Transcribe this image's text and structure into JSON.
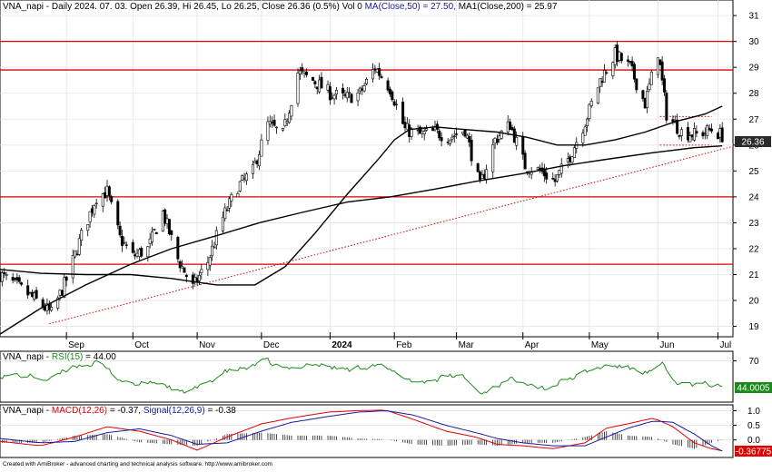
{
  "header": {
    "price_title": "VNA_napi - Daily 2024. 07. 03. Open 26.39, Hi 26.45, Lo 26.25, Close 26.36 (0.5%) Vol 0",
    "ma50_label": "MA(Close,50) = 27.50,",
    "ma200_label": "MA1(Close,200) = 25.97",
    "rsi_prefix": "VNA_napi - ",
    "rsi_label": "RSI(15)",
    "rsi_value": "= 44.00",
    "macd_prefix": "VNA_napi - ",
    "macd_label": "MACD(12,26)",
    "macd_value": "= -0.37,",
    "signal_label": "Signal(12,26,9)",
    "signal_value": "= -0.38"
  },
  "footer": {
    "credit": "Created with AmiBroker - advanced charting and technical analysis software. http://www.amibroker.com"
  },
  "colors": {
    "up": "#ffffff",
    "down": "#000000",
    "hline": "#e00000",
    "trend": "#d00000",
    "rsi": "#1a8a1a",
    "macd": "#e00000",
    "signal": "#1a1aa0",
    "ma": "#000000",
    "price_badge": "#2a2a2a",
    "rsi_badge": "#1a8a1a",
    "macd_badge": "#e00000"
  },
  "chart_data": [
    {
      "type": "candlestick",
      "pane": "price",
      "ylim": [
        18.6,
        31.6
      ],
      "yticks": [
        19,
        20,
        21,
        22,
        23,
        24,
        25,
        26,
        27,
        28,
        29,
        30,
        31
      ],
      "xlim": [
        "2023-08-01",
        "2024-07-08"
      ],
      "month_ticks": [
        {
          "label": "Sep",
          "date": "2023-09-01",
          "bold": false
        },
        {
          "label": "Oct",
          "date": "2023-10-02",
          "bold": false
        },
        {
          "label": "Nov",
          "date": "2023-11-01",
          "bold": false
        },
        {
          "label": "Dec",
          "date": "2023-12-01",
          "bold": false
        },
        {
          "label": "2024",
          "date": "2024-01-02",
          "bold": true
        },
        {
          "label": "Feb",
          "date": "2024-02-01",
          "bold": false
        },
        {
          "label": "Mar",
          "date": "2024-03-01",
          "bold": false
        },
        {
          "label": "Apr",
          "date": "2024-04-01",
          "bold": false
        },
        {
          "label": "May",
          "date": "2024-05-02",
          "bold": false
        },
        {
          "label": "Jun",
          "date": "2024-06-03",
          "bold": false
        },
        {
          "label": "Jul",
          "date": "2024-07-01",
          "bold": false
        }
      ],
      "last_close": "26.36",
      "horizontal_lines": [
        30,
        28.9,
        24,
        21.4
      ],
      "trendlines": [
        {
          "style": "dotted",
          "x1": "2023-08-24",
          "y1": 19.1,
          "x2": "2024-07-08",
          "y2": 25.95
        },
        {
          "style": "dotted",
          "x1": "2024-06-04",
          "y1": 27.1,
          "x2": "2024-06-28",
          "y2": 27.1
        },
        {
          "style": "dotted",
          "x1": "2024-06-04",
          "y1": 26.0,
          "x2": "2024-06-28",
          "y2": 26.0
        }
      ],
      "series": [
        {
          "kind": "ma50",
          "points": [
            [
              "2023-08-01",
              21.2
            ],
            [
              "2023-08-20",
              21.05
            ],
            [
              "2023-09-10",
              21.0
            ],
            [
              "2023-10-01",
              21.0
            ],
            [
              "2023-10-20",
              20.85
            ],
            [
              "2023-11-10",
              20.6
            ],
            [
              "2023-11-28",
              20.6
            ],
            [
              "2023-12-12",
              21.3
            ],
            [
              "2023-12-26",
              22.6
            ],
            [
              "2024-01-10",
              24.1
            ],
            [
              "2024-01-25",
              25.5
            ],
            [
              "2024-02-01",
              26.2
            ],
            [
              "2024-02-08",
              26.6
            ],
            [
              "2024-02-20",
              26.7
            ],
            [
              "2024-03-05",
              26.6
            ],
            [
              "2024-03-20",
              26.5
            ],
            [
              "2024-04-03",
              26.3
            ],
            [
              "2024-04-17",
              26.0
            ],
            [
              "2024-04-30",
              26.0
            ],
            [
              "2024-05-14",
              26.2
            ],
            [
              "2024-05-28",
              26.5
            ],
            [
              "2024-06-11",
              26.9
            ],
            [
              "2024-06-25",
              27.2
            ],
            [
              "2024-07-03",
              27.5
            ]
          ]
        },
        {
          "kind": "ma200",
          "points": [
            [
              "2023-08-01",
              18.7
            ],
            [
              "2023-08-20",
              19.7
            ],
            [
              "2023-09-10",
              20.6
            ],
            [
              "2023-10-01",
              21.4
            ],
            [
              "2023-10-20",
              22.0
            ],
            [
              "2023-11-10",
              22.5
            ],
            [
              "2023-11-30",
              23.0
            ],
            [
              "2023-12-20",
              23.4
            ],
            [
              "2024-01-10",
              23.8
            ],
            [
              "2024-01-30",
              24.0
            ],
            [
              "2024-02-20",
              24.3
            ],
            [
              "2024-03-10",
              24.6
            ],
            [
              "2024-04-01",
              24.9
            ],
            [
              "2024-04-20",
              25.2
            ],
            [
              "2024-05-10",
              25.45
            ],
            [
              "2024-05-31",
              25.7
            ],
            [
              "2024-06-20",
              25.9
            ],
            [
              "2024-07-03",
              25.97
            ]
          ]
        },
        {
          "kind": "close_path",
          "points": [
            [
              "2023-08-01",
              21.0
            ],
            [
              "2023-08-10",
              20.5
            ],
            [
              "2023-08-18",
              20.0
            ],
            [
              "2023-08-25",
              19.5
            ],
            [
              "2023-09-01",
              20.8
            ],
            [
              "2023-09-08",
              22.5
            ],
            [
              "2023-09-15",
              24.0
            ],
            [
              "2023-09-20",
              24.2
            ],
            [
              "2023-09-26",
              22.4
            ],
            [
              "2023-10-02",
              21.7
            ],
            [
              "2023-10-09",
              22.0
            ],
            [
              "2023-10-16",
              23.4
            ],
            [
              "2023-10-23",
              21.6
            ],
            [
              "2023-10-30",
              20.5
            ],
            [
              "2023-11-06",
              21.5
            ],
            [
              "2023-11-13",
              23.2
            ],
            [
              "2023-11-20",
              24.4
            ],
            [
              "2023-11-27",
              25.0
            ],
            [
              "2023-12-04",
              26.8
            ],
            [
              "2023-12-11",
              26.4
            ],
            [
              "2023-12-18",
              28.8
            ],
            [
              "2023-12-25",
              28.5
            ],
            [
              "2024-01-02",
              28.0
            ],
            [
              "2024-01-09",
              27.8
            ],
            [
              "2024-01-16",
              28.0
            ],
            [
              "2024-01-23",
              29.0
            ],
            [
              "2024-01-30",
              28.2
            ],
            [
              "2024-02-06",
              26.6
            ],
            [
              "2024-02-13",
              26.4
            ],
            [
              "2024-02-20",
              26.5
            ],
            [
              "2024-02-27",
              26.3
            ],
            [
              "2024-03-05",
              26.6
            ],
            [
              "2024-03-12",
              24.4
            ],
            [
              "2024-03-19",
              26.2
            ],
            [
              "2024-03-26",
              26.8
            ],
            [
              "2024-04-02",
              25.2
            ],
            [
              "2024-04-09",
              25.0
            ],
            [
              "2024-04-16",
              24.6
            ],
            [
              "2024-04-23",
              25.6
            ],
            [
              "2024-04-30",
              26.9
            ],
            [
              "2024-05-07",
              28.5
            ],
            [
              "2024-05-14",
              29.5
            ],
            [
              "2024-05-21",
              29.0
            ],
            [
              "2024-05-28",
              27.6
            ],
            [
              "2024-06-03",
              29.6
            ],
            [
              "2024-06-07",
              27.2
            ],
            [
              "2024-06-14",
              26.5
            ],
            [
              "2024-06-21",
              26.4
            ],
            [
              "2024-06-28",
              26.6
            ],
            [
              "2024-07-03",
              26.36
            ]
          ]
        }
      ]
    },
    {
      "type": "line",
      "pane": "rsi",
      "ylim": [
        27,
        80
      ],
      "yticks": [
        70
      ],
      "last_value": "44.0005",
      "series": [
        {
          "name": "RSI(15)",
          "points": [
            [
              "2023-08-01",
              56
            ],
            [
              "2023-08-15",
              54
            ],
            [
              "2023-08-25",
              50
            ],
            [
              "2023-09-05",
              66
            ],
            [
              "2023-09-15",
              68
            ],
            [
              "2023-09-25",
              52
            ],
            [
              "2023-10-05",
              45
            ],
            [
              "2023-10-15",
              48
            ],
            [
              "2023-10-25",
              36
            ],
            [
              "2023-11-03",
              42
            ],
            [
              "2023-11-13",
              58
            ],
            [
              "2023-11-23",
              62
            ],
            [
              "2023-12-03",
              68
            ],
            [
              "2023-12-13",
              60
            ],
            [
              "2023-12-23",
              68
            ],
            [
              "2024-01-02",
              64
            ],
            [
              "2024-01-12",
              60
            ],
            [
              "2024-01-22",
              68
            ],
            [
              "2024-02-01",
              56
            ],
            [
              "2024-02-12",
              48
            ],
            [
              "2024-02-22",
              52
            ],
            [
              "2024-03-04",
              54
            ],
            [
              "2024-03-12",
              36
            ],
            [
              "2024-03-22",
              48
            ],
            [
              "2024-04-01",
              52
            ],
            [
              "2024-04-11",
              42
            ],
            [
              "2024-04-21",
              50
            ],
            [
              "2024-05-01",
              58
            ],
            [
              "2024-05-11",
              66
            ],
            [
              "2024-05-21",
              62
            ],
            [
              "2024-05-30",
              58
            ],
            [
              "2024-06-05",
              64
            ],
            [
              "2024-06-10",
              48
            ],
            [
              "2024-06-20",
              44
            ],
            [
              "2024-06-28",
              45
            ],
            [
              "2024-07-03",
              44
            ]
          ]
        }
      ]
    },
    {
      "type": "bar+line",
      "pane": "macd",
      "ylim": [
        -0.6,
        1.2
      ],
      "yticks": [
        1.0,
        0.5,
        0.0
      ],
      "last_value": "-0.36775",
      "series": [
        {
          "name": "MACD(12,26)",
          "points": [
            [
              "2023-08-01",
              -0.05
            ],
            [
              "2023-08-20",
              -0.2
            ],
            [
              "2023-09-05",
              0.1
            ],
            [
              "2023-09-20",
              0.45
            ],
            [
              "2023-10-05",
              0.3
            ],
            [
              "2023-10-20",
              0.0
            ],
            [
              "2023-11-01",
              -0.35
            ],
            [
              "2023-11-15",
              0.1
            ],
            [
              "2023-12-01",
              0.55
            ],
            [
              "2023-12-15",
              0.75
            ],
            [
              "2024-01-01",
              0.95
            ],
            [
              "2024-01-15",
              1.0
            ],
            [
              "2024-01-28",
              1.02
            ],
            [
              "2024-02-10",
              0.7
            ],
            [
              "2024-02-25",
              0.3
            ],
            [
              "2024-03-10",
              0.1
            ],
            [
              "2024-03-20",
              -0.15
            ],
            [
              "2024-04-01",
              -0.2
            ],
            [
              "2024-04-15",
              -0.3
            ],
            [
              "2024-04-30",
              -0.1
            ],
            [
              "2024-05-10",
              0.4
            ],
            [
              "2024-05-20",
              0.55
            ],
            [
              "2024-06-01",
              0.75
            ],
            [
              "2024-06-10",
              0.45
            ],
            [
              "2024-06-20",
              -0.1
            ],
            [
              "2024-06-28",
              -0.3
            ],
            [
              "2024-07-03",
              -0.37
            ]
          ]
        },
        {
          "name": "Signal(12,26,9)",
          "points": [
            [
              "2023-08-01",
              0.05
            ],
            [
              "2023-08-20",
              -0.1
            ],
            [
              "2023-09-05",
              -0.05
            ],
            [
              "2023-09-20",
              0.25
            ],
            [
              "2023-10-05",
              0.38
            ],
            [
              "2023-10-20",
              0.15
            ],
            [
              "2023-11-01",
              -0.15
            ],
            [
              "2023-11-15",
              -0.1
            ],
            [
              "2023-12-01",
              0.3
            ],
            [
              "2023-12-15",
              0.6
            ],
            [
              "2024-01-01",
              0.8
            ],
            [
              "2024-01-15",
              0.95
            ],
            [
              "2024-01-28",
              1.0
            ],
            [
              "2024-02-10",
              0.85
            ],
            [
              "2024-02-25",
              0.5
            ],
            [
              "2024-03-10",
              0.25
            ],
            [
              "2024-03-20",
              0.05
            ],
            [
              "2024-04-01",
              -0.1
            ],
            [
              "2024-04-15",
              -0.2
            ],
            [
              "2024-04-30",
              -0.2
            ],
            [
              "2024-05-10",
              0.1
            ],
            [
              "2024-05-20",
              0.4
            ],
            [
              "2024-06-01",
              0.65
            ],
            [
              "2024-06-10",
              0.6
            ],
            [
              "2024-06-20",
              0.2
            ],
            [
              "2024-06-28",
              -0.2
            ],
            [
              "2024-07-03",
              -0.38
            ]
          ]
        }
      ]
    }
  ]
}
